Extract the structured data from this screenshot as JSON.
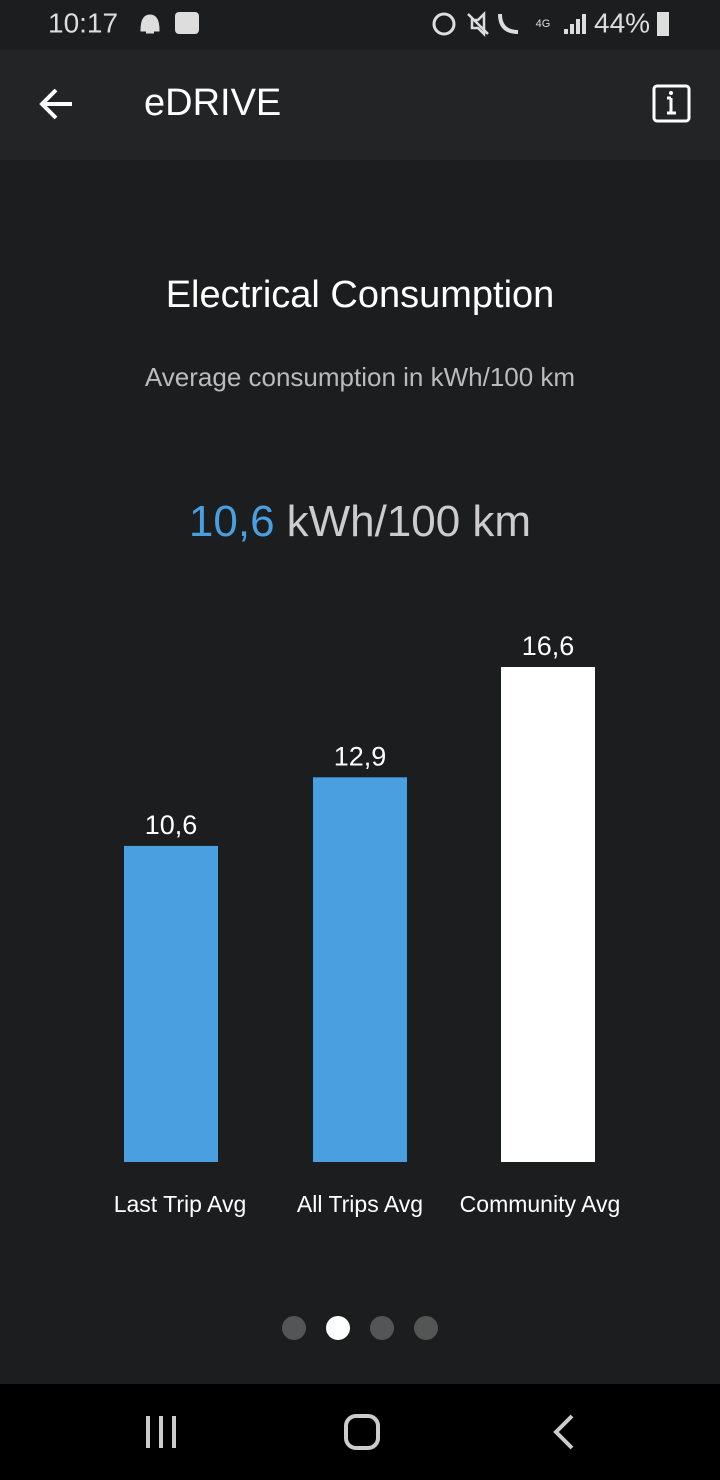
{
  "status_bar": {
    "time": "10:17",
    "battery": "44%"
  },
  "header": {
    "title": "eDRIVE"
  },
  "chart_data": {
    "type": "bar",
    "title": "Electrical Consumption",
    "subtitle": "Average consumption in kWh/100 km",
    "headline": {
      "value_label": "10,6",
      "unit": "kWh/100 km"
    },
    "categories": [
      "Last Trip Avg",
      "All Trips Avg",
      "Community Avg"
    ],
    "values": [
      10.6,
      12.9,
      16.6
    ],
    "value_labels": [
      "10,6",
      "12,9",
      "16,6"
    ],
    "colors": [
      "#4a9fe0",
      "#4a9fe0",
      "#ffffff"
    ],
    "ylim": [
      0,
      16.6
    ]
  },
  "pager": {
    "count": 4,
    "active": 1
  }
}
